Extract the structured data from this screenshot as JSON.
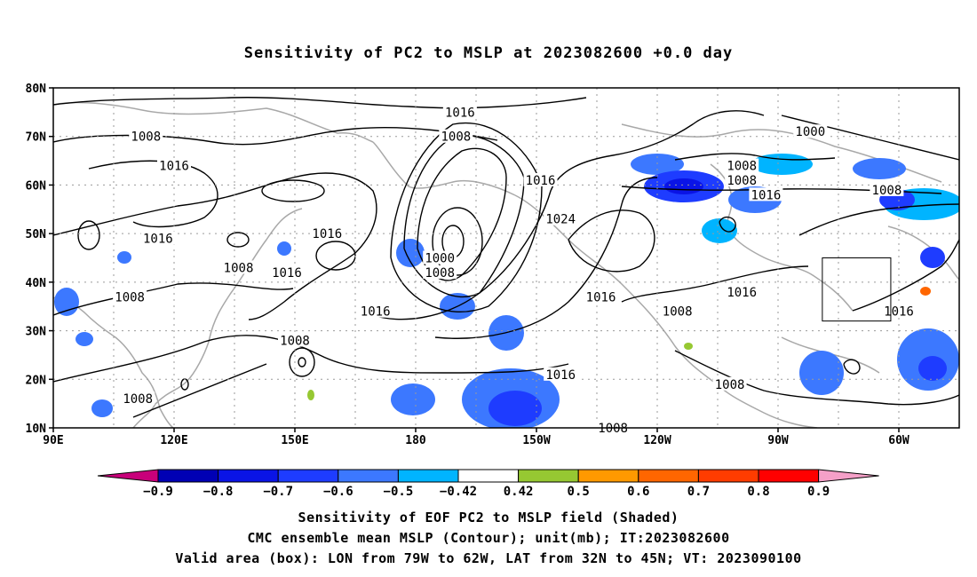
{
  "title": "Sensitivity of PC2 to MSLP at 2023082600 +0.0 day",
  "map": {
    "lat_ticks": [
      "80N",
      "70N",
      "60N",
      "50N",
      "40N",
      "30N",
      "20N",
      "10N"
    ],
    "lon_ticks": [
      "90E",
      "120E",
      "150E",
      "180",
      "150W",
      "120W",
      "90W",
      "60W"
    ],
    "lon_range": [
      90,
      315
    ],
    "lat_range": [
      10,
      80
    ],
    "contour_labels": [
      {
        "text": "1016",
        "lon": 191,
        "lat": 75
      },
      {
        "text": "1008",
        "lon": 113,
        "lat": 70
      },
      {
        "text": "1008",
        "lon": 190,
        "lat": 70
      },
      {
        "text": "1000",
        "lon": 278,
        "lat": 71
      },
      {
        "text": "1016",
        "lon": 120,
        "lat": 64
      },
      {
        "text": "1008",
        "lon": 261,
        "lat": 64
      },
      {
        "text": "1008",
        "lon": 261,
        "lat": 61
      },
      {
        "text": "1016",
        "lon": 211,
        "lat": 61
      },
      {
        "text": "1016",
        "lon": 267,
        "lat": 58
      },
      {
        "text": "1008",
        "lon": 297,
        "lat": 59
      },
      {
        "text": "1024",
        "lon": 216,
        "lat": 53
      },
      {
        "text": "1016",
        "lon": 158,
        "lat": 50
      },
      {
        "text": "1016",
        "lon": 116,
        "lat": 49
      },
      {
        "text": "1000",
        "lon": 186,
        "lat": 45
      },
      {
        "text": "1008",
        "lon": 136,
        "lat": 43
      },
      {
        "text": "1008",
        "lon": 186,
        "lat": 42
      },
      {
        "text": "1016",
        "lon": 148,
        "lat": 42
      },
      {
        "text": "1008",
        "lon": 109,
        "lat": 37
      },
      {
        "text": "1016",
        "lon": 226,
        "lat": 37
      },
      {
        "text": "1016",
        "lon": 261,
        "lat": 38
      },
      {
        "text": "1016",
        "lon": 300,
        "lat": 34
      },
      {
        "text": "1008",
        "lon": 245,
        "lat": 34
      },
      {
        "text": "1016",
        "lon": 170,
        "lat": 34
      },
      {
        "text": "1008",
        "lon": 150,
        "lat": 28
      },
      {
        "text": "1016",
        "lon": 216,
        "lat": 21
      },
      {
        "text": "1008",
        "lon": 258,
        "lat": 19
      },
      {
        "text": "1008",
        "lon": 111,
        "lat": 16
      },
      {
        "text": "1008",
        "lon": 229,
        "lat": 10
      }
    ],
    "valid_box": {
      "lon_min": 281,
      "lon_max": 298,
      "lat_min": 32,
      "lat_max": 45
    }
  },
  "colorbar": {
    "colors": [
      "#c8007a",
      "#0000b4",
      "#0a14e6",
      "#1e3cff",
      "#3c78ff",
      "#00b4ff",
      "#ffffff",
      "#96c832",
      "#ff9900",
      "#ff6600",
      "#ff3c00",
      "#ff0000",
      "#f5a0c8"
    ],
    "labels": [
      "-0.9",
      "-0.8",
      "-0.7",
      "-0.6",
      "-0.5",
      "-0.42",
      "0.42",
      "0.5",
      "0.6",
      "0.7",
      "0.8",
      "0.9"
    ]
  },
  "captions": [
    "Sensitivity of EOF PC2 to MSLP field (Shaded)",
    "CMC ensemble mean MSLP (Contour); unit(mb); IT:2023082600",
    "Valid area (box): LON from 79W to 62W, LAT from 32N to 45N; VT: 2023090100"
  ]
}
